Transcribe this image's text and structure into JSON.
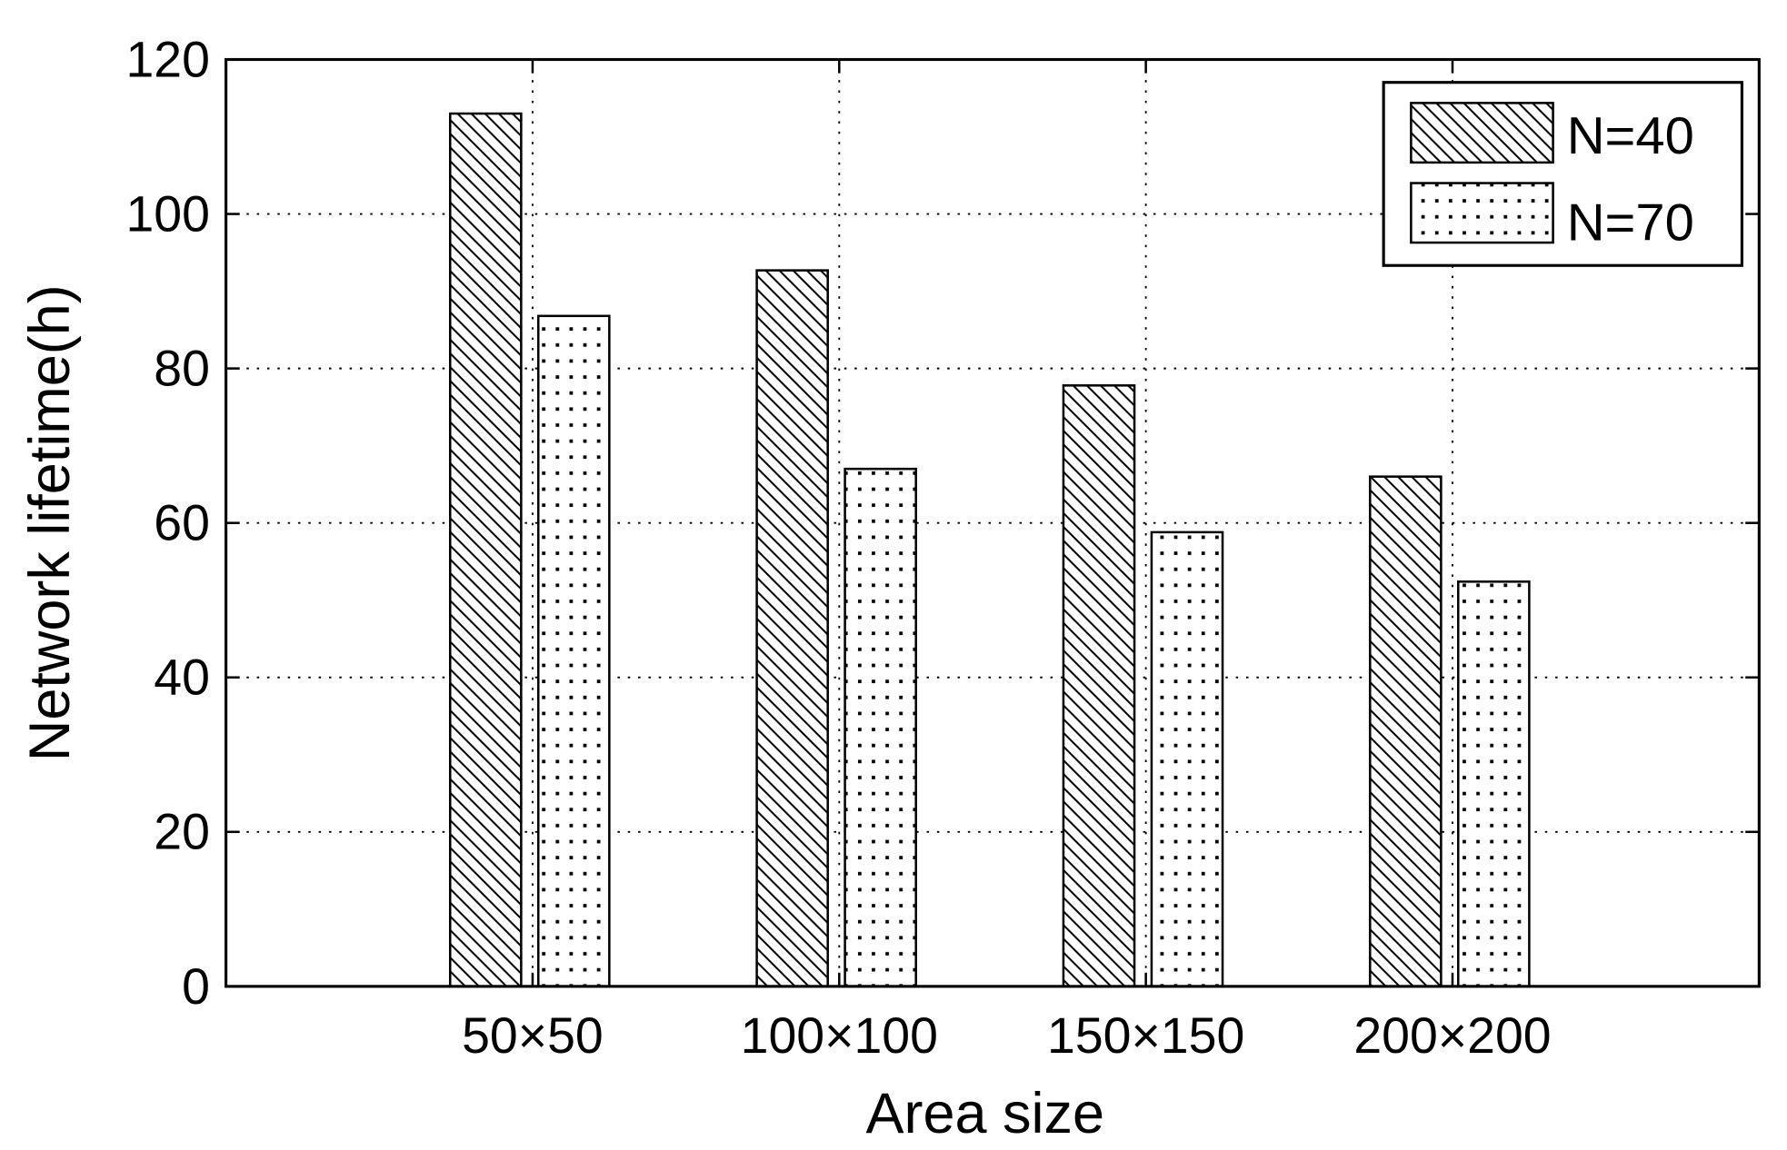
{
  "chart_data": {
    "type": "bar",
    "title": "",
    "xlabel": "Area size",
    "ylabel": "Network lifetime(h)",
    "categories": [
      "50×50",
      "100×100",
      "150×150",
      "200×200"
    ],
    "ylim": [
      0,
      120
    ],
    "yticks": [
      0,
      20,
      40,
      60,
      80,
      100,
      120
    ],
    "grid": true,
    "legend_position": "top-right",
    "series": [
      {
        "name": "N=40",
        "pattern": "diagonal-hatch",
        "values": [
          113,
          92.7,
          77.8,
          66
        ]
      },
      {
        "name": "N=70",
        "pattern": "dots",
        "values": [
          86.8,
          67,
          58.8,
          52.4
        ]
      }
    ]
  }
}
